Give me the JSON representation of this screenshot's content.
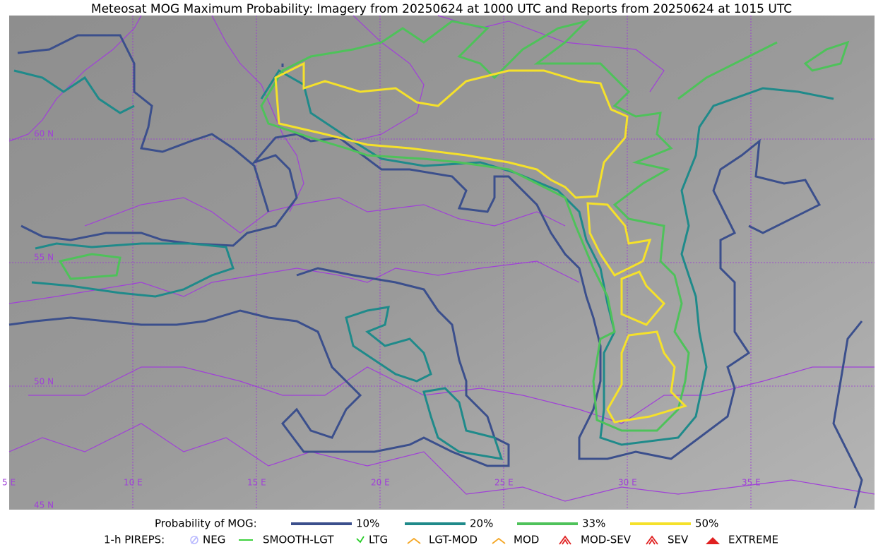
{
  "title": "Meteosat MOG Maximum Probability: Imagery from 20250624 at 1000 UTC and Reports from 20250624 at 1015 UTC",
  "map": {
    "lon_labels": [
      "5 E",
      "10 E",
      "15 E",
      "20 E",
      "25 E",
      "30 E",
      "35 E"
    ],
    "lat_labels": [
      "45 N",
      "50 N",
      "55 N",
      "60 N"
    ]
  },
  "legend": {
    "probability": {
      "title": "Probability of MOG:",
      "items": [
        {
          "label": "10%",
          "color": "#3b4f8c"
        },
        {
          "label": "20%",
          "color": "#1f8a8a"
        },
        {
          "label": "33%",
          "color": "#4ec25a"
        },
        {
          "label": "50%",
          "color": "#f5e12a"
        }
      ]
    },
    "pireps": {
      "title": "1-h PIREPS:",
      "items": [
        {
          "label": "NEG",
          "color": "#b8b8ff"
        },
        {
          "label": "SMOOTH-LGT",
          "color": "#22cc22"
        },
        {
          "label": "LTG",
          "color": "#22cc22"
        },
        {
          "label": "LGT-MOD",
          "color": "#f5a623"
        },
        {
          "label": "MOD",
          "color": "#f5a623"
        },
        {
          "label": "MOD-SEV",
          "color": "#e02020"
        },
        {
          "label": "SEV",
          "color": "#e02020"
        },
        {
          "label": "EXTREME",
          "color": "#e02020"
        }
      ]
    }
  }
}
